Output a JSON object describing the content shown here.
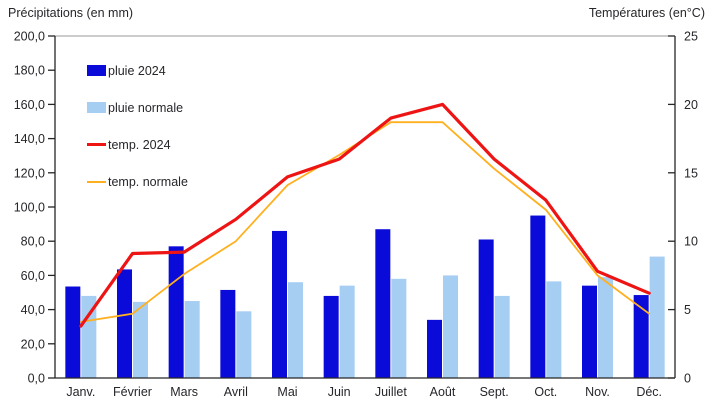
{
  "chart_data": {
    "type": "combo-bar-line",
    "categories": [
      "Janv.",
      "Février",
      "Mars",
      "Avril",
      "Mai",
      "Juin",
      "Juillet",
      "Août",
      "Sept.",
      "Oct.",
      "Nov.",
      "Déc."
    ],
    "bar_series": [
      {
        "name": "pluie 2024",
        "axis": "left",
        "color": "#0a0ad9",
        "values": [
          53.5,
          63.5,
          77,
          51.5,
          86,
          48,
          87,
          34,
          81,
          95,
          54,
          48.5
        ]
      },
      {
        "name": "pluie normale",
        "axis": "left",
        "color": "#a6cdf2",
        "values": [
          48,
          44.5,
          45,
          39,
          56,
          54,
          58,
          60,
          48,
          56.5,
          59,
          71
        ]
      }
    ],
    "line_series": [
      {
        "name": "temp. 2024",
        "axis": "right",
        "color": "#ee1414",
        "stroke_width": 3.2,
        "values": [
          3.8,
          9.1,
          9.2,
          11.6,
          14.7,
          16.0,
          19.0,
          20.0,
          16.0,
          13.0,
          7.8,
          6.2
        ]
      },
      {
        "name": "temp. normale",
        "axis": "right",
        "color": "#ffb01e",
        "stroke_width": 1.8,
        "values": [
          4.1,
          4.7,
          7.6,
          10.0,
          14.1,
          16.3,
          18.7,
          18.7,
          15.3,
          12.3,
          7.5,
          4.7
        ]
      }
    ],
    "left_axis": {
      "title": "Précipitations (en mm)",
      "min": 0,
      "max": 200,
      "step": 20,
      "tick_labels": [
        "0,0",
        "20,0",
        "40,0",
        "60,0",
        "80,0",
        "100,0",
        "120,0",
        "140,0",
        "160,0",
        "180,0",
        "200,0"
      ]
    },
    "right_axis": {
      "title": "Températures (en°C)",
      "min": 0,
      "max": 25,
      "step": 5,
      "tick_labels": [
        "0",
        "5",
        "10",
        "15",
        "20",
        "25"
      ]
    },
    "legend_position": "inside-top-left",
    "grid": "top-border-only",
    "background": "#ffffff"
  },
  "colors": {
    "text": "#26262b",
    "axis_line": "#262626",
    "top_gridline": "#999999",
    "plot_background": "#ffffff"
  }
}
